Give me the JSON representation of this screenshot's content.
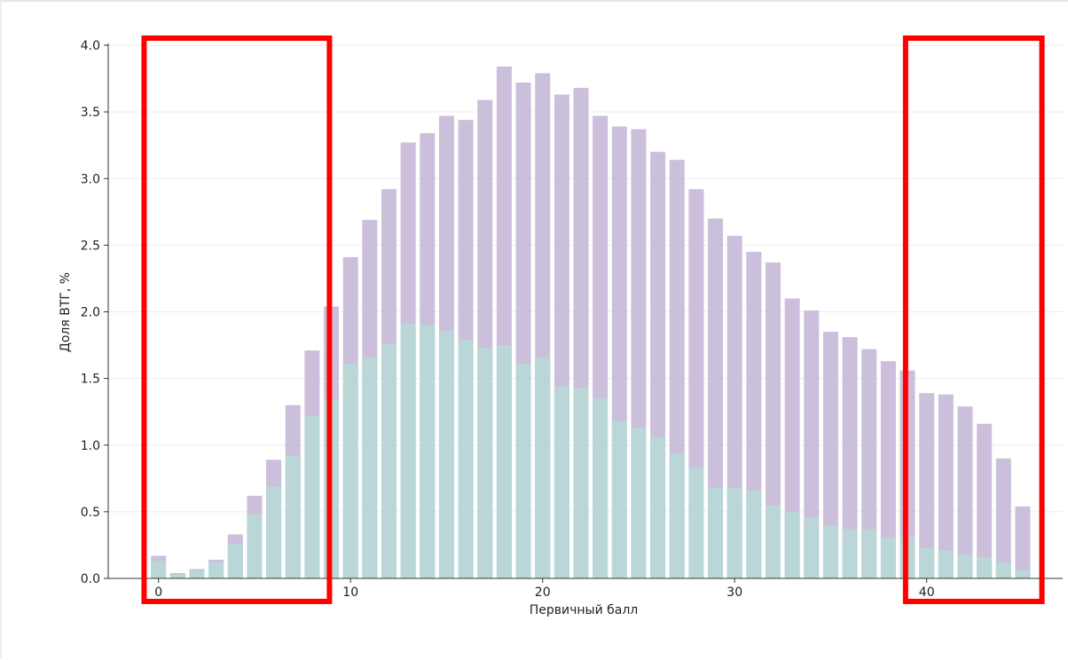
{
  "chart_data": {
    "type": "bar",
    "title": "",
    "xlabel": "Первичный балл",
    "ylabel": "Доля ВТГ, %",
    "xlim": [
      -1,
      46
    ],
    "ylim": [
      0,
      4.0
    ],
    "x_ticks": [
      "0",
      "10",
      "20",
      "30",
      "40"
    ],
    "y_ticks": [
      "0.0",
      "0.5",
      "1.0",
      "1.5",
      "2.0",
      "2.5",
      "3.0",
      "3.5",
      "4.0"
    ],
    "grid": "horizontal",
    "x": [
      0,
      1,
      2,
      3,
      4,
      5,
      6,
      7,
      8,
      9,
      10,
      11,
      12,
      13,
      14,
      15,
      16,
      17,
      18,
      19,
      20,
      21,
      22,
      23,
      24,
      25,
      26,
      27,
      28,
      29,
      30,
      31,
      32,
      33,
      34,
      35,
      36,
      37,
      38,
      39,
      40,
      41,
      42,
      43,
      44,
      45
    ],
    "series": [
      {
        "color": "#cbbfdb",
        "values": [
          0.17,
          0.04,
          0.07,
          0.14,
          0.33,
          0.62,
          0.89,
          1.3,
          1.71,
          2.04,
          2.41,
          2.69,
          2.92,
          3.27,
          3.34,
          3.47,
          3.44,
          3.59,
          3.84,
          3.72,
          3.79,
          3.63,
          3.68,
          3.47,
          3.39,
          3.37,
          3.2,
          3.14,
          2.92,
          2.7,
          2.57,
          2.45,
          2.37,
          2.1,
          2.01,
          1.85,
          1.81,
          1.72,
          1.63,
          1.56,
          1.39,
          1.38,
          1.29,
          1.16,
          0.9,
          0.54
        ]
      },
      {
        "color": "#bad6d6",
        "values": [
          0.13,
          0.03,
          0.06,
          0.12,
          0.26,
          0.48,
          0.69,
          0.92,
          1.22,
          1.34,
          1.61,
          1.66,
          1.76,
          1.91,
          1.9,
          1.86,
          1.79,
          1.73,
          1.75,
          1.61,
          1.66,
          1.44,
          1.43,
          1.35,
          1.18,
          1.13,
          1.06,
          0.94,
          0.83,
          0.68,
          0.68,
          0.66,
          0.55,
          0.5,
          0.46,
          0.4,
          0.37,
          0.37,
          0.31,
          0.31,
          0.23,
          0.21,
          0.18,
          0.16,
          0.12,
          0.06
        ]
      }
    ],
    "annotations": [
      {
        "kind": "highlight-box",
        "color": "#ff0000",
        "x_range": [
          -0.75,
          8.9
        ]
      },
      {
        "kind": "highlight-box",
        "color": "#ff0000",
        "x_range": [
          38.9,
          46.0
        ]
      }
    ]
  }
}
